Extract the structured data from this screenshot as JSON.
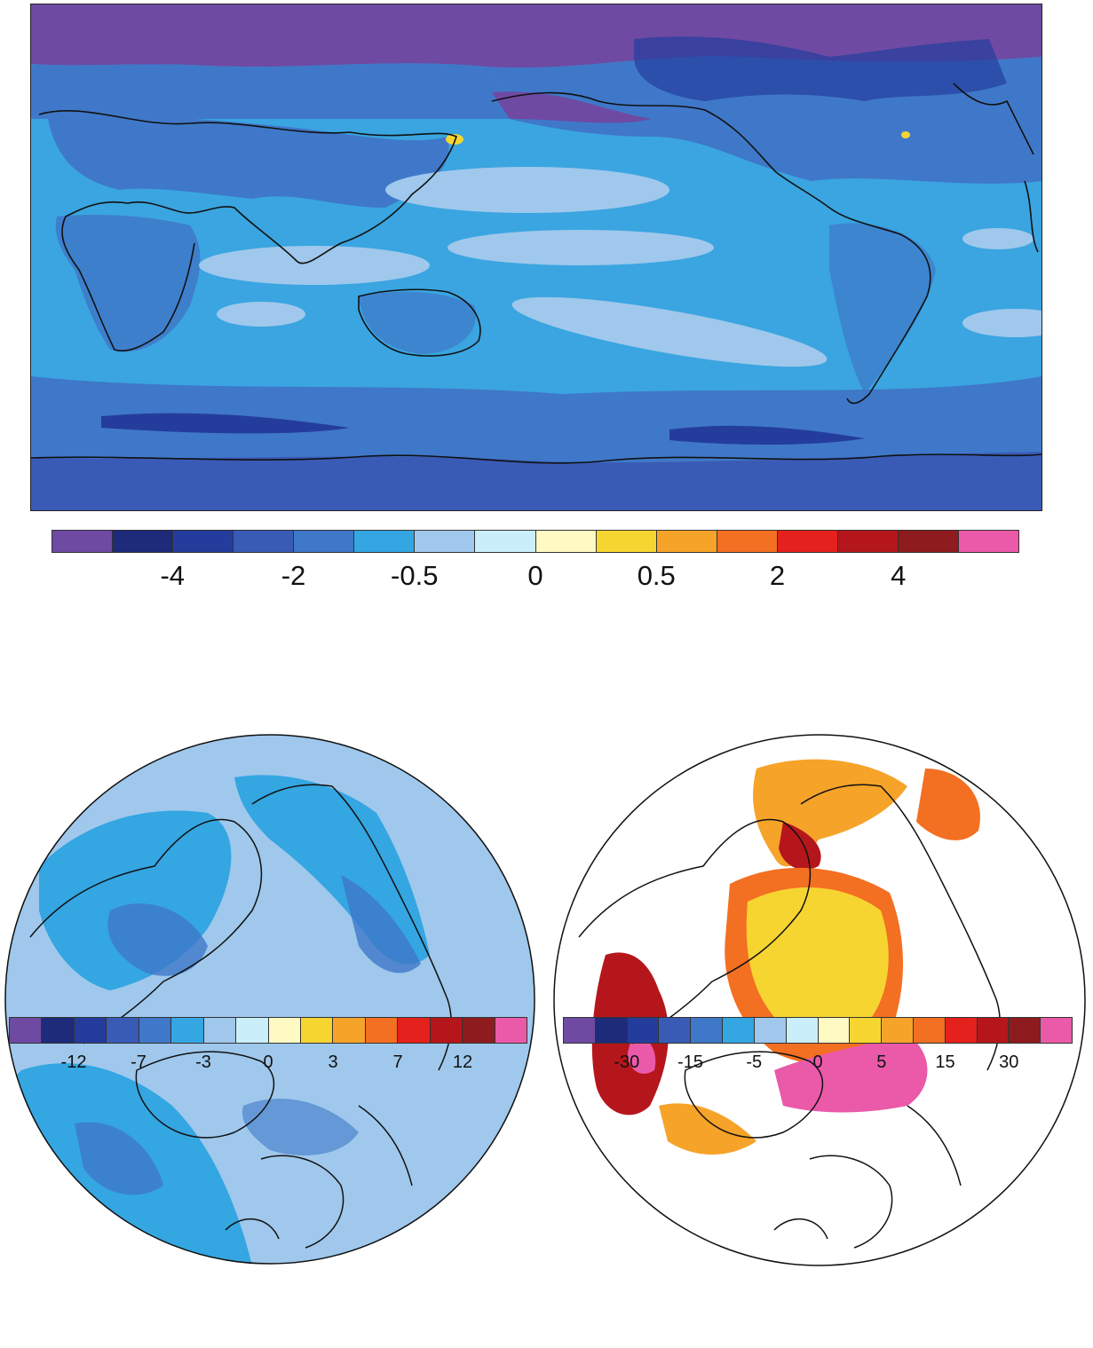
{
  "figure": {
    "global_map": {
      "name": "global-anomaly-map",
      "colorbar": {
        "colors": [
          "#6e4aa3",
          "#1e2a7a",
          "#243d9c",
          "#3a5bb5",
          "#3f78c8",
          "#34a6e2",
          "#9fc8ec",
          "#cbeefb",
          "#fff9c4",
          "#f6d531",
          "#f6a32a",
          "#f36f21",
          "#e4211c",
          "#b5161c",
          "#8e1b1e",
          "#ea5aa9"
        ],
        "tick_labels": [
          "-4",
          "-2",
          "-0.5",
          "0",
          "0.5",
          "2",
          "4"
        ],
        "tick_boundary_index": [
          2,
          4,
          6,
          8,
          10,
          12,
          14
        ]
      }
    },
    "polar_left": {
      "name": "polar-left-map",
      "colorbar": {
        "colors": [
          "#6e4aa3",
          "#1e2a7a",
          "#243d9c",
          "#3a5bb5",
          "#3f78c8",
          "#34a6e2",
          "#9fc8ec",
          "#cbeefb",
          "#fff9c4",
          "#f6d531",
          "#f6a32a",
          "#f36f21",
          "#e4211c",
          "#b5161c",
          "#8e1b1e",
          "#ea5aa9"
        ],
        "tick_labels": [
          "-12",
          "-7",
          "-3",
          "0",
          "3",
          "7",
          "12"
        ],
        "tick_boundary_index": [
          2,
          4,
          6,
          8,
          10,
          12,
          14
        ]
      }
    },
    "polar_right": {
      "name": "polar-right-map",
      "colorbar": {
        "colors": [
          "#6e4aa3",
          "#1e2a7a",
          "#243d9c",
          "#3a5bb5",
          "#3f78c8",
          "#34a6e2",
          "#9fc8ec",
          "#cbeefb",
          "#fff9c4",
          "#f6d531",
          "#f6a32a",
          "#f36f21",
          "#e4211c",
          "#b5161c",
          "#8e1b1e",
          "#ea5aa9"
        ],
        "tick_labels": [
          "-30",
          "-15",
          "-5",
          "0",
          "5",
          "15",
          "30"
        ],
        "tick_boundary_index": [
          2,
          4,
          6,
          8,
          10,
          12,
          14
        ]
      }
    }
  }
}
